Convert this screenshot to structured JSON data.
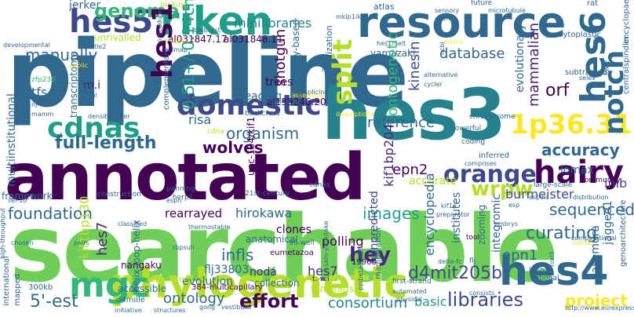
{
  "background": "#ffffff",
  "palette": {
    "purple_dark": "#440154",
    "purple": "#482878",
    "indigo": "#3e4989",
    "blue": "#31688e",
    "steel": "#26828e",
    "teal": "#1f9e89",
    "green": "#35b779",
    "lime": "#6ece58",
    "yellow_green": "#b5de2b",
    "yellow": "#fde725"
  },
  "words": {
    "searchable": "searchable",
    "pipeline": "pipeline",
    "annotated": "annotated",
    "hes3": "hes3",
    "resource": "resource",
    "phylogenetic": "phylogenetic",
    "riken": "riken",
    "hes5": "hes5",
    "hes4": "hes4",
    "hairy": "hairy",
    "domestic": "domestic",
    "cdnas": "cdnas",
    "orange": "orange",
    "mgc": "mgc",
    "notch": "notch",
    "hes6": "hes6",
    "hes1": "hes1",
    "split": "split",
    "p36": "1p36.31",
    "genome": "genome",
    "minilibraries": "minilibraries",
    "full_length": "full-length",
    "accuracy": "accuracy",
    "foundation": "foundation",
    "wolves": "wolves",
    "organism": "organism",
    "curating": "curating",
    "project": "project",
    "effort": "effort",
    "consortium": "consortium",
    "libraries": "libraries",
    "ontology": "ontology",
    "est": "5'-est",
    "d4mit205b": "d4mit205b",
    "encyclopedia": "encyclopedia",
    "wrpw": "wrpw",
    "sequenced": "sequenced",
    "hey": "hey",
    "images": "images",
    "epn2": "epn2",
    "epn1": "epn1",
    "reference": "reference",
    "database": "database",
    "manually": "manually",
    "orf": "orf",
    "mammalian": "mammalian",
    "ontogenetic": "ontogenetic",
    "kinesin": "kinesin",
    "shotgun": "shotgun",
    "hirokawa": "hirokawa",
    "rearrayed": "rearrayed",
    "basic": "basic",
    "hes7": "hes7",
    "infls": "infls",
    "kif1bp130": "kif1bp130",
    "kif1bp204": "kif1bp204",
    "integromic": "integromic",
    "burmeister": "burmeister",
    "inib": "inib",
    "lomax": "lomax",
    "accurate": "accurate",
    "framework": "framework",
    "multiinstitutional": "multiinstitutional",
    "transcriptome": "transcriptome",
    "tfs": "tfs",
    "jerker": "jerker",
    "unrivalled": "unrivalled",
    "atlas": "atlas",
    "yamazaki": "yamazaki",
    "evolutionary": "evolutionary",
    "risa": "risa",
    "trees": "trees",
    "reading": "reading",
    "al031847": "al031847.17",
    "al031848": "al031848.11",
    "al139246": "al139246.20",
    "unc104": "unc-104/kif1",
    "cm": "0.51+/-0.14cm",
    "anatomy_based": "anatomy-based",
    "hybridization": "hybridization",
    "genoarchitecture": "genoarchitecture",
    "jagged1": "jagged1",
    "takemura": "takemura",
    "zooming": "zooming",
    "institutes": "institutes",
    "nonpredicted": "nonpredicted",
    "manipulation": "manipulation",
    "polling": "polling",
    "clones": "clones",
    "anatomical": "anatomical",
    "well96": "96-well",
    "flj33803": "flj33803",
    "noda": "noda",
    "evolution": "evolution",
    "collection": "collection",
    "familiaris": "familiaris",
    "t_w_i": "t.-w.i",
    "multicapillary": "384-multicapillary",
    "assembler": "assembler",
    "accessible": "accessible",
    "kb300": "300kb",
    "d4mille": "d4mille",
    "nangaku": "nangaku",
    "helix_loop_helix": "helix-loop-helix",
    "eumetazoa": "eumetazoa",
    "b1996": "1996b",
    "classified": "classified",
    "international": "international",
    "mapped": "mapped",
    "chosen": "chosen",
    "pairs": "pairs",
    "mi": "m.i",
    "picking": "picking",
    "biologist": "biologist",
    "procedures": "procedures",
    "complementary": "complementary",
    "gudmap": "gudmap",
    "mklp1": "mklp1/kif23",
    "microtubule": "microtubule",
    "future": "future",
    "rat": "rat",
    "cytoplastic": "cytoplastic",
    "encyclopaedia": "encyclopaedia",
    "subtracted": "subtracted",
    "centralspindlin": "centralspindlin",
    "chromosome": "chromosome",
    "powerful": "powerful",
    "inferred": "inferred",
    "community": "community",
    "large_scale": "large-scale",
    "espn": "espn",
    "espins": "espins",
    "construction": "construction",
    "century": "21st-century",
    "panning": "panning",
    "herp1": "herp1",
    "cdna": "cdna",
    "backcross": "backcross",
    "densitometer": "densitometer",
    "within_group": "within-group",
    "splicing": "splicing",
    "assertions": "assertions",
    "nrarp": "nrarp",
    "sato": "sato-yoshitake",
    "ppibeta": "ppibeta-myptl",
    "first_strand": "first-strand",
    "automated": "automated",
    "physical": "physical",
    "vestibular": "vestibular",
    "structures": "structures",
    "initiative": "initiative",
    "gong": "gong",
    "tool": "tool",
    "embrys": "embrys",
    "computational": "computational",
    "kb_h": "kb/h",
    "national": "national",
    "flj": "flj",
    "delta_fc": "delta-fc",
    "kif1a": "kif1a",
    "alternative": "alternative",
    "cycler": "cycler",
    "coding": "coding",
    "comprises": "comprises",
    "selex": "selex",
    "distribution": "distribution",
    "preparator": "preparator",
    "consists": "consists",
    "thermostable": "thermostable",
    "rbpsuh": "rbpsuh",
    "high_throughput": "high-throughput",
    "sel10": "sel-10",
    "url": "http://www.eurexpress.org",
    "fantom": "fantom",
    "tle2": "tle2",
    "developmental": "developmental",
    "public": "public",
    "sensory": "sensory",
    "giant": "giant",
    "errors": "errors",
    "hes1_helt": "hes1/helt",
    "isx": "isx",
    "kif1b": "kif1b",
    "foxi2": "foxi2",
    "foxi3": "foxi3",
    "zfp238": "zfp238",
    "distal": "distal",
    "nj": "nj",
    "mamm": "mamm",
    "ncbi": "ncbi",
    "covering": "covering",
    "descriptions": "descriptions",
    "catnag": "catnag",
    "esp": "esp",
    "cdnas2": "cdnas"
  }
}
